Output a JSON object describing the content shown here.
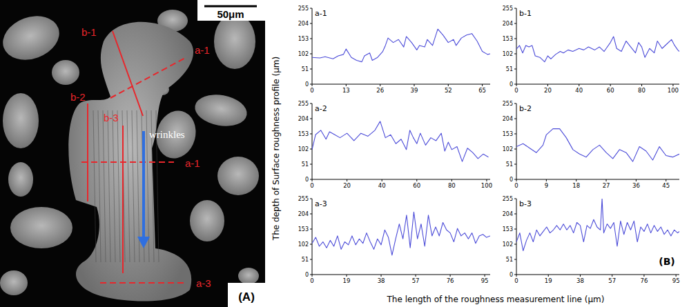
{
  "panel_a": {
    "label": "(A)",
    "scale_bar": "50μm",
    "arrow_label": "wrinkles",
    "lines": [
      {
        "label": "b-1",
        "line_style": "solid"
      },
      {
        "label": "a-1",
        "line_style": "dashed"
      },
      {
        "label": "b-2",
        "line_style": "solid"
      },
      {
        "label": "b-3",
        "line_style": "solid"
      },
      {
        "label": "a-1",
        "line_style": "dashed"
      },
      {
        "label": "a-3",
        "line_style": "dashed"
      }
    ]
  },
  "panel_b": {
    "label": "(B)",
    "ylabel": "The depth of Surface roughness profile (μm)",
    "xlabel": "The length of the roughness measurement line (μm)"
  },
  "chart_data": [
    {
      "type": "line",
      "title": "a-1",
      "color": "#4b4bd8",
      "x": [
        0,
        3,
        5,
        8,
        10,
        12,
        13,
        15,
        17,
        19,
        20,
        22,
        23,
        25,
        27,
        28,
        29,
        31,
        33,
        35,
        36,
        38,
        40,
        41,
        43,
        44,
        46,
        48,
        50,
        52,
        54,
        55,
        57,
        59,
        61,
        63,
        65,
        67,
        68
      ],
      "values": [
        90,
        88,
        92,
        85,
        95,
        100,
        118,
        90,
        80,
        75,
        95,
        105,
        80,
        90,
        110,
        130,
        155,
        140,
        150,
        125,
        160,
        140,
        115,
        130,
        125,
        150,
        130,
        185,
        165,
        140,
        150,
        130,
        155,
        165,
        170,
        145,
        110,
        100,
        102
      ],
      "xlim": [
        0,
        68
      ],
      "xticks": [
        0,
        13,
        26,
        39,
        52,
        65
      ],
      "ylim": [
        0,
        255
      ],
      "yticks": [
        0,
        51,
        102,
        153,
        204,
        255
      ]
    },
    {
      "type": "line",
      "title": "b-1",
      "color": "#4b4bd8",
      "x": [
        0,
        2,
        4,
        6,
        8,
        10,
        12,
        15,
        18,
        20,
        22,
        25,
        28,
        30,
        33,
        36,
        40,
        43,
        46,
        50,
        53,
        56,
        60,
        62,
        64,
        67,
        70,
        73,
        76,
        78,
        80,
        82,
        85,
        88,
        90,
        93,
        96,
        99,
        101,
        103,
        104
      ],
      "values": [
        118,
        130,
        105,
        130,
        125,
        130,
        95,
        90,
        75,
        95,
        85,
        100,
        110,
        105,
        115,
        110,
        120,
        115,
        125,
        115,
        125,
        110,
        140,
        160,
        120,
        110,
        145,
        125,
        105,
        140,
        125,
        90,
        120,
        105,
        145,
        120,
        135,
        150,
        130,
        115,
        110
      ],
      "xlim": [
        0,
        104
      ],
      "xticks": [
        0,
        20,
        40,
        60,
        80,
        100
      ],
      "ylim": [
        0,
        255
      ],
      "yticks": [
        0,
        51,
        102,
        153,
        204,
        255
      ]
    },
    {
      "type": "line",
      "title": "a-2",
      "color": "#4b4bd8",
      "x": [
        0,
        2,
        5,
        8,
        10,
        13,
        16,
        20,
        24,
        28,
        32,
        36,
        39,
        42,
        45,
        48,
        51,
        54,
        56,
        58,
        60,
        62,
        65,
        68,
        71,
        74,
        76,
        78,
        80,
        83,
        86,
        89,
        92,
        95,
        98,
        101
      ],
      "values": [
        100,
        150,
        165,
        135,
        160,
        150,
        140,
        155,
        130,
        155,
        145,
        165,
        195,
        140,
        150,
        120,
        135,
        100,
        165,
        140,
        120,
        155,
        115,
        140,
        130,
        155,
        95,
        125,
        100,
        110,
        60,
        105,
        90,
        70,
        85,
        75
      ],
      "xlim": [
        0,
        102
      ],
      "xticks": [
        0,
        20,
        40,
        60,
        80,
        100
      ],
      "ylim": [
        0,
        255
      ],
      "yticks": [
        0,
        51,
        102,
        153,
        204,
        255
      ]
    },
    {
      "type": "line",
      "title": "b-2",
      "color": "#4b4bd8",
      "x": [
        0,
        2,
        4,
        6,
        8,
        9,
        11,
        13,
        15,
        17,
        19,
        21,
        23,
        25,
        27,
        29,
        31,
        33,
        35,
        37,
        39,
        41,
        43,
        45,
        47,
        49
      ],
      "values": [
        110,
        120,
        105,
        90,
        115,
        150,
        170,
        170,
        140,
        100,
        85,
        75,
        100,
        115,
        90,
        70,
        100,
        90,
        60,
        110,
        95,
        65,
        110,
        80,
        75,
        85
      ],
      "xlim": [
        0,
        49
      ],
      "xticks": [
        0,
        9,
        18,
        27,
        36,
        45
      ],
      "ylim": [
        0,
        255
      ],
      "yticks": [
        0,
        51,
        102,
        153,
        204,
        255
      ]
    },
    {
      "type": "line",
      "title": "a-3",
      "color": "#4b4bd8",
      "x": [
        0,
        2,
        4,
        6,
        8,
        10,
        12,
        14,
        16,
        18,
        20,
        22,
        24,
        26,
        28,
        30,
        32,
        34,
        36,
        38,
        40,
        42,
        44,
        46,
        48,
        50,
        52,
        54,
        56,
        58,
        60,
        62,
        64,
        66,
        68,
        70,
        72,
        74,
        76,
        78,
        80,
        82,
        84,
        86,
        88,
        90,
        92,
        94,
        96,
        98
      ],
      "values": [
        105,
        125,
        95,
        110,
        90,
        115,
        95,
        130,
        85,
        110,
        100,
        130,
        100,
        120,
        105,
        140,
        110,
        85,
        120,
        100,
        150,
        125,
        65,
        120,
        170,
        120,
        200,
        90,
        210,
        120,
        170,
        95,
        200,
        130,
        160,
        130,
        175,
        150,
        140,
        110,
        155,
        130,
        140,
        120,
        140,
        105,
        130,
        135,
        125,
        130
      ],
      "xlim": [
        0,
        98
      ],
      "xticks": [
        0,
        19,
        38,
        57,
        76,
        95
      ],
      "ylim": [
        0,
        255
      ],
      "yticks": [
        0,
        51,
        102,
        153,
        204,
        255
      ]
    },
    {
      "type": "line",
      "title": "b-3",
      "color": "#4b4bd8",
      "x": [
        0,
        2,
        4,
        6,
        8,
        10,
        12,
        14,
        16,
        18,
        20,
        22,
        24,
        26,
        28,
        30,
        32,
        34,
        36,
        38,
        40,
        42,
        44,
        46,
        48,
        50,
        51,
        52,
        54,
        56,
        58,
        60,
        62,
        64,
        66,
        68,
        70,
        72,
        74,
        76,
        78,
        80,
        82,
        84,
        86,
        88,
        90,
        92,
        94,
        96,
        97
      ],
      "values": [
        110,
        140,
        80,
        115,
        140,
        110,
        150,
        130,
        145,
        160,
        140,
        150,
        165,
        150,
        170,
        150,
        165,
        140,
        175,
        165,
        110,
        165,
        155,
        185,
        160,
        150,
        255,
        140,
        170,
        155,
        175,
        95,
        180,
        135,
        175,
        150,
        180,
        110,
        160,
        145,
        170,
        140,
        165,
        145,
        160,
        135,
        150,
        130,
        150,
        140,
        145
      ],
      "xlim": [
        0,
        97
      ],
      "xticks": [
        0,
        19,
        38,
        57,
        76,
        95
      ],
      "ylim": [
        0,
        255
      ],
      "yticks": [
        0,
        51,
        102,
        153,
        204,
        255
      ]
    }
  ]
}
